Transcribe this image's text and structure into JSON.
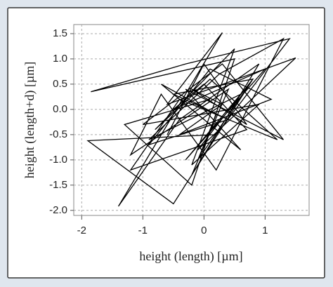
{
  "chart_data": {
    "type": "line",
    "xlabel": "height (length) [µm]",
    "ylabel": "height (length+d) [µm]",
    "xlim": [
      -2.13,
      1.72
    ],
    "ylim": [
      -2.1,
      1.68
    ],
    "xticks": [
      -2,
      -1,
      0,
      1
    ],
    "yticks": [
      {
        "value": 1.5,
        "label": "1.5"
      },
      {
        "value": 1,
        "label": "1.0"
      },
      {
        "value": 0.5,
        "label": "0.5"
      },
      {
        "value": 0,
        "label": "0.0"
      },
      {
        "value": -0.5,
        "label": "-0.5"
      },
      {
        "value": -1,
        "label": "-1.0"
      },
      {
        "value": -1.5,
        "label": "-1.5"
      },
      {
        "value": -2,
        "label": "-2.0"
      }
    ],
    "grid": true,
    "series": [
      {
        "color": "#000000",
        "x": [
          0.1,
          -1.3,
          -0.2,
          0.5,
          -1.85,
          -0.3,
          1.4,
          0.2,
          -1.9,
          -0.5,
          0.8,
          -0.1,
          1.5,
          -0.6,
          0.3,
          -1.4,
          -0.4,
          0.9,
          -0.2,
          0.4,
          -1.2,
          -0.7,
          0.2,
          1.3,
          0.25,
          -0.9,
          0.6,
          -0.3,
          1.0,
          -0.5,
          0.0,
          0.7,
          -1.2,
          -0.4,
          1.2,
          0.1,
          -0.8,
          0.5,
          -0.2,
          0.9,
          -1.0,
          0.3,
          1.3,
          -0.3,
          0.6,
          -0.7,
          0.2,
          -0.1,
          0.8,
          -0.5,
          0.4,
          -0.9,
          0.1,
          1.1,
          -0.4,
          0.3,
          -0.2,
          0.7,
          0.0,
          -0.6
        ],
        "values": [
          0.2,
          -0.3,
          -1.5,
          1.0,
          0.35,
          0.9,
          1.4,
          -0.5,
          -0.62,
          -1.87,
          0.6,
          -0.8,
          1.02,
          0.1,
          1.52,
          -1.92,
          -0.2,
          0.9,
          -1.3,
          0.4,
          -0.9,
          0.3,
          -1.2,
          1.4,
          0.7,
          -0.6,
          0.3,
          -1.0,
          0.8,
          0.0,
          0.5,
          -0.4,
          -1.2,
          0.2,
          -0.6,
          0.6,
          -0.4,
          1.2,
          -1.1,
          0.1,
          -0.3,
          0.9,
          -0.6,
          0.4,
          -0.8,
          0.5,
          -0.1,
          -1.0,
          0.6,
          0.3,
          -0.2,
          -0.7,
          0.8,
          0.2,
          -0.5,
          0.1,
          0.4,
          -0.3,
          0.9,
          -0.5
        ]
      }
    ]
  }
}
